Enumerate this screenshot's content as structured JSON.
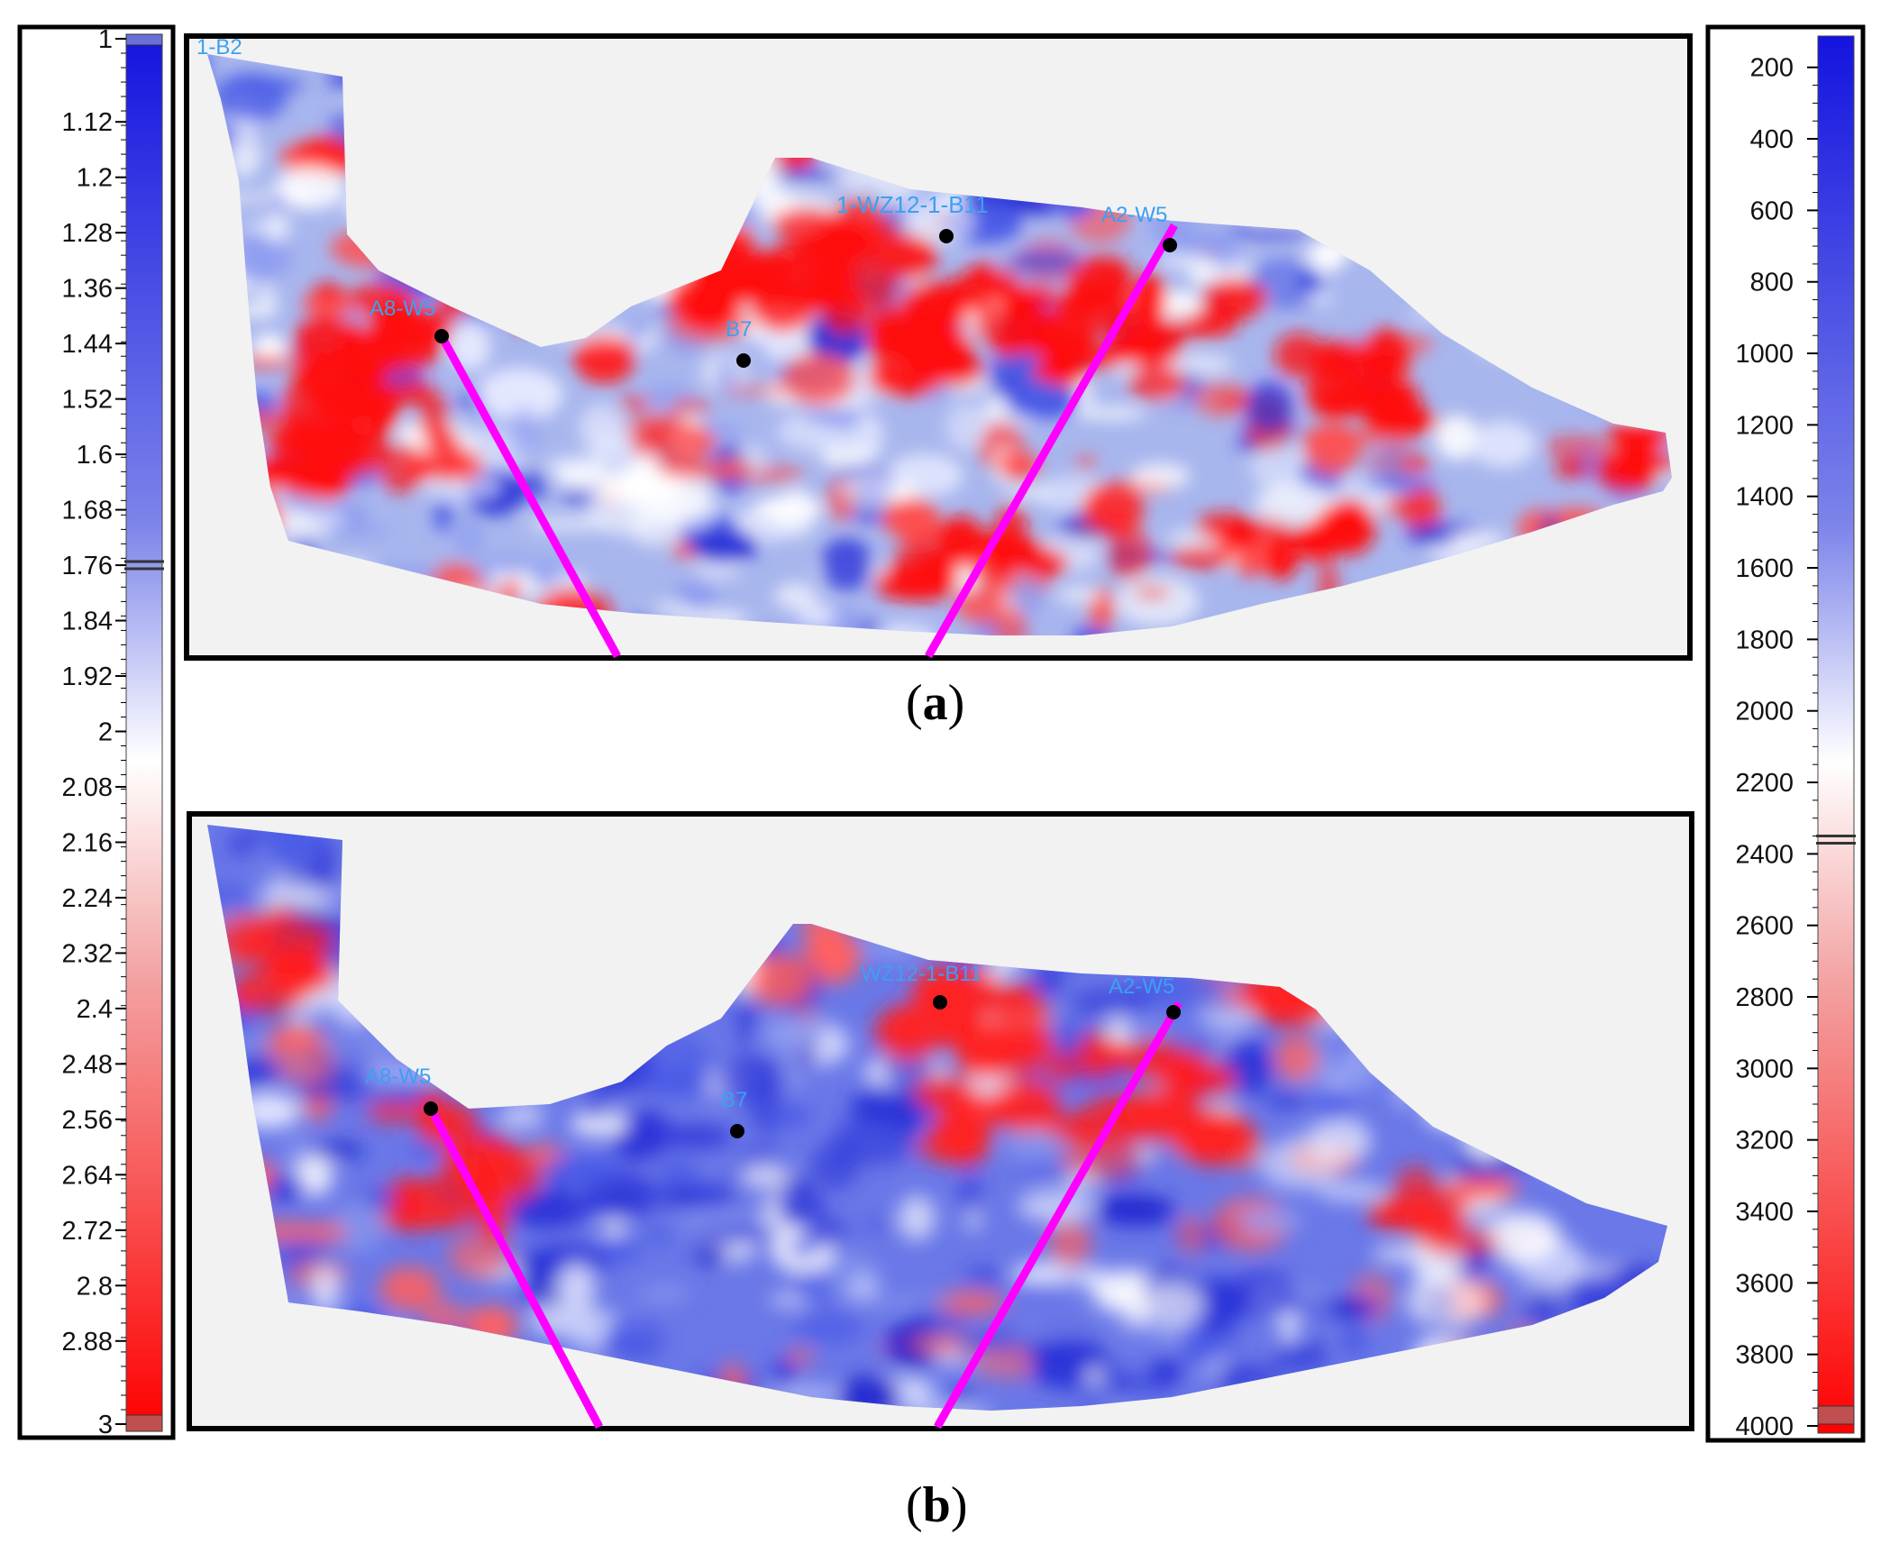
{
  "colorbar_left": {
    "ticks": [
      "1",
      "1.12",
      "1.2",
      "1.28",
      "1.36",
      "1.44",
      "1.52",
      "1.6",
      "1.68",
      "1.76",
      "1.84",
      "1.92",
      "2",
      "2.08",
      "2.16",
      "2.24",
      "2.32",
      "2.4",
      "2.48",
      "2.56",
      "2.64",
      "2.72",
      "2.8",
      "2.88",
      "3"
    ],
    "tick_values": [
      1,
      1.12,
      1.2,
      1.28,
      1.36,
      1.44,
      1.52,
      1.6,
      1.68,
      1.76,
      1.84,
      1.92,
      2,
      2.08,
      2.16,
      2.24,
      2.32,
      2.4,
      2.48,
      2.56,
      2.64,
      2.72,
      2.8,
      2.88,
      3
    ],
    "range": [
      1,
      3
    ],
    "marker_value": 1.76,
    "colors": {
      "low": "#1414e0",
      "mid": "#ffffff",
      "high": "#ff0000"
    }
  },
  "colorbar_right": {
    "ticks": [
      "200",
      "400",
      "600",
      "800",
      "1000",
      "1200",
      "1400",
      "1600",
      "1800",
      "2000",
      "2200",
      "2400",
      "2600",
      "2800",
      "3000",
      "3200",
      "3400",
      "3600",
      "3800",
      "4000"
    ],
    "tick_values": [
      200,
      400,
      600,
      800,
      1000,
      1200,
      1400,
      1600,
      1800,
      2000,
      2200,
      2400,
      2600,
      2800,
      3000,
      3200,
      3400,
      3600,
      3800,
      4000
    ],
    "range": [
      120,
      4000
    ],
    "marker_value": 2360,
    "colors": {
      "low": "#1414e0",
      "mid": "#ffffff",
      "high": "#ff0000"
    }
  },
  "panels": [
    {
      "caption_letter": "a",
      "wells": [
        {
          "label": "1-B2"
        },
        {
          "label": "A8-W5"
        },
        {
          "label": "B7"
        },
        {
          "label": "1-WZ12-1-B11"
        },
        {
          "label": "A2-W5"
        }
      ]
    },
    {
      "caption_letter": "b",
      "wells": [
        {
          "label": "A8-W5"
        },
        {
          "label": "B7"
        },
        {
          "label": "WZ12-1-B11"
        },
        {
          "label": "A2-W5"
        }
      ]
    }
  ],
  "colors": {
    "well_track": "#ff00ff",
    "well_label": "#3ca0f0",
    "frame": "#000000",
    "background": "#f2f2f2"
  }
}
